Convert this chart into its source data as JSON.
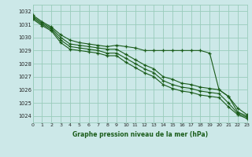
{
  "background_color": "#cce8e8",
  "grid_color": "#99ccbb",
  "line_color": "#1a5c1a",
  "xlim": [
    0,
    23
  ],
  "ylim": [
    1023.5,
    1032.5
  ],
  "yticks": [
    1024,
    1025,
    1026,
    1027,
    1028,
    1029,
    1030,
    1031,
    1032
  ],
  "xticks": [
    0,
    1,
    2,
    3,
    4,
    5,
    6,
    7,
    8,
    9,
    10,
    11,
    12,
    13,
    14,
    15,
    16,
    17,
    18,
    19,
    20,
    21,
    22,
    23
  ],
  "title": "Graphe pression niveau de la mer (hPa)",
  "series": [
    [
      1031.7,
      1031.2,
      1030.8,
      1030.2,
      1029.8,
      1029.6,
      1029.5,
      1029.4,
      1029.3,
      1029.4,
      1029.3,
      1029.2,
      1029.0,
      1029.0,
      1029.0,
      1029.0,
      1029.0,
      1029.0,
      1029.0,
      1028.8,
      1026.0,
      1025.5,
      1024.6,
      1024.1
    ],
    [
      1031.6,
      1031.1,
      1030.7,
      1030.0,
      1029.5,
      1029.4,
      1029.3,
      1029.2,
      1029.1,
      1029.1,
      1028.7,
      1028.3,
      1027.9,
      1027.6,
      1027.0,
      1026.8,
      1026.5,
      1026.4,
      1026.2,
      1026.1,
      1026.0,
      1025.5,
      1024.3,
      1024.0
    ],
    [
      1031.5,
      1031.0,
      1030.6,
      1029.8,
      1029.3,
      1029.2,
      1029.1,
      1029.0,
      1028.8,
      1028.8,
      1028.4,
      1028.0,
      1027.6,
      1027.3,
      1026.7,
      1026.4,
      1026.2,
      1026.1,
      1025.9,
      1025.8,
      1025.7,
      1025.0,
      1024.2,
      1023.9
    ],
    [
      1031.4,
      1030.9,
      1030.5,
      1029.6,
      1029.1,
      1029.0,
      1028.9,
      1028.8,
      1028.6,
      1028.6,
      1028.1,
      1027.7,
      1027.3,
      1027.0,
      1026.4,
      1026.1,
      1025.9,
      1025.8,
      1025.6,
      1025.5,
      1025.4,
      1024.7,
      1024.1,
      1023.8
    ]
  ]
}
